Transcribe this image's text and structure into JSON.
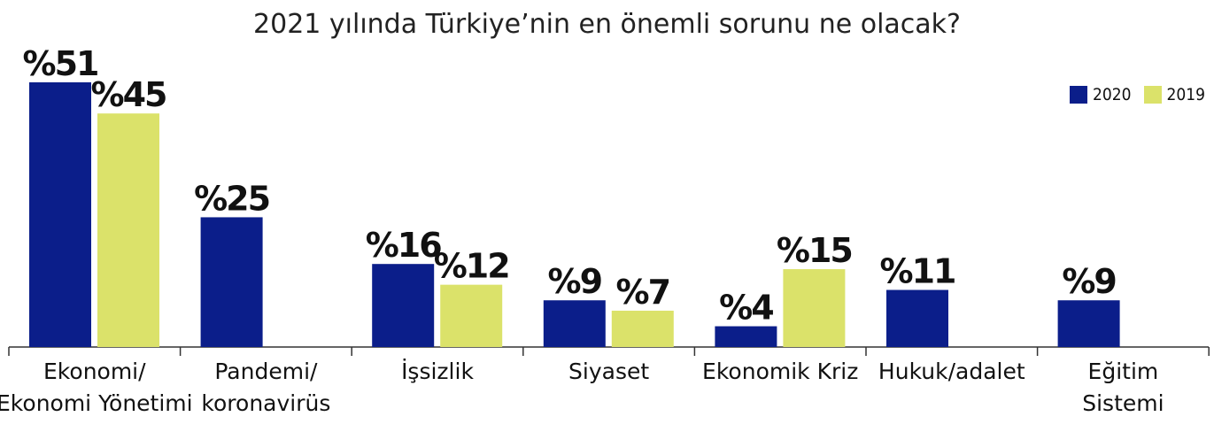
{
  "chart_data": {
    "type": "bar",
    "title": "2021 yılında Türkiye’nin en önemli sorunu ne olacak?",
    "categories": [
      [
        "Ekonomi/",
        "Ekonomi Yönetimi"
      ],
      [
        "Pandemi/",
        "koronavirüs"
      ],
      [
        "İşsizlik"
      ],
      [
        "Siyaset"
      ],
      [
        "Ekonomik Kriz"
      ],
      [
        "Hukuk/adalet"
      ],
      [
        "Eğitim",
        "Sistemi"
      ]
    ],
    "series": [
      {
        "name": "2020",
        "color": "#0b1e8a",
        "values": [
          51,
          25,
          16,
          9,
          4,
          11,
          9
        ],
        "labels": [
          "%51",
          "%25",
          "%16",
          "%9",
          "%4",
          "%11",
          "%9"
        ]
      },
      {
        "name": "2019",
        "color": "#dbe26a",
        "values": [
          45,
          null,
          12,
          7,
          15,
          null,
          null
        ],
        "labels": [
          "%45",
          "",
          "%12",
          "%7",
          "%15",
          "",
          ""
        ]
      }
    ],
    "ylim": [
      0,
      52
    ],
    "grid": false,
    "legend_position": "top-right"
  }
}
